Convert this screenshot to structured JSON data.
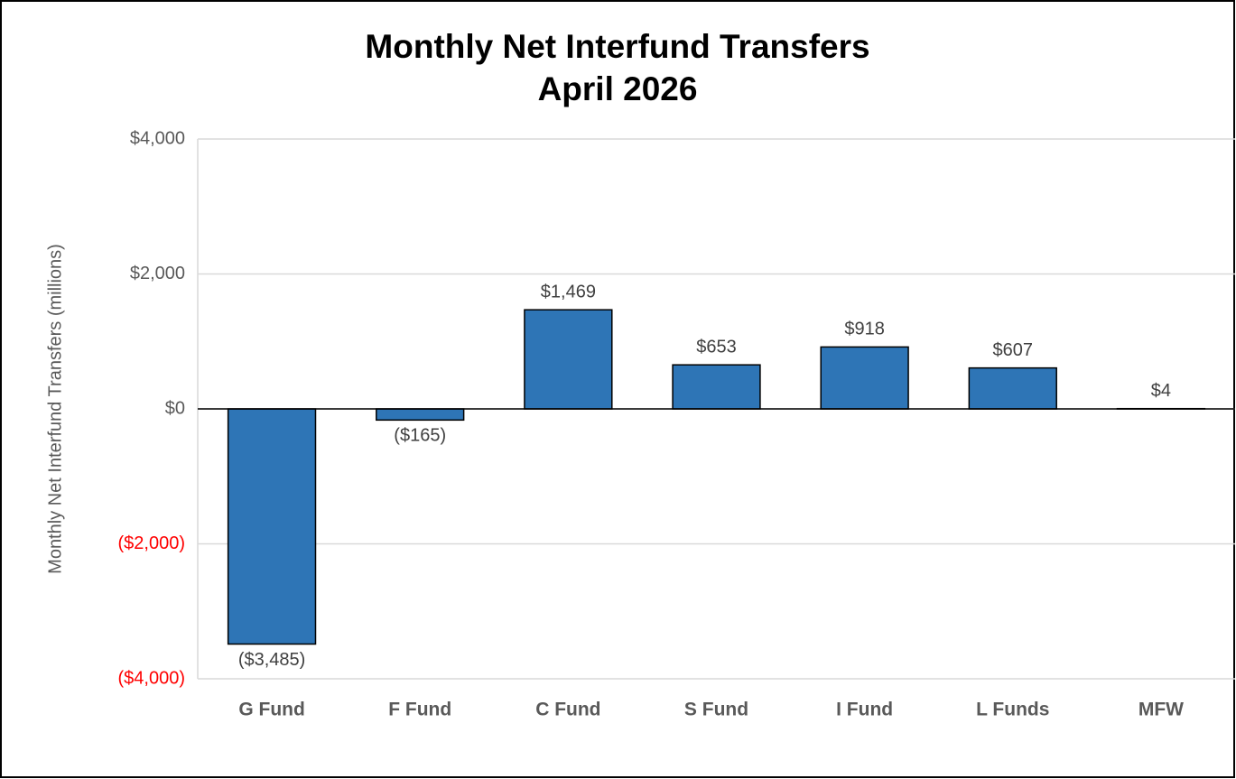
{
  "chart_data": {
    "type": "bar",
    "title": "Monthly Net Interfund Transfers",
    "subtitle": "April 2026",
    "y_label": "Monthly Net Interfund Transfers (millions)",
    "categories": [
      "G Fund",
      "F Fund",
      "C Fund",
      "S Fund",
      "I Fund",
      "L Funds",
      "MFW"
    ],
    "values": [
      -3485,
      -165,
      1469,
      653,
      918,
      607,
      4
    ],
    "value_labels": [
      "($3,485)",
      "($165)",
      "$1,469",
      "$653",
      "$918",
      "$607",
      "$4"
    ],
    "color": "#2e75b6",
    "ylim": [
      -4000,
      4000
    ],
    "yticks": [
      {
        "value": 4000,
        "label": "$4,000"
      },
      {
        "value": 2000,
        "label": "$2,000"
      },
      {
        "value": 0,
        "label": "$0"
      },
      {
        "value": -2000,
        "label": "($2,000)"
      },
      {
        "value": -4000,
        "label": "($4,000)"
      }
    ],
    "grid": true
  }
}
